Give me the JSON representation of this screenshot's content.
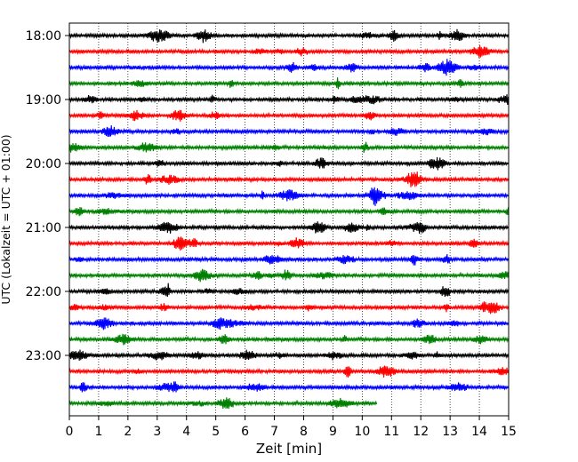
{
  "chart_data": {
    "type": "line",
    "title": "",
    "xlabel": "Zeit  [min]",
    "ylabel": "UTC (Lokalzeit = UTC + 01:00)",
    "xlim": [
      0,
      15
    ],
    "x_ticks": [
      0,
      1,
      2,
      3,
      4,
      5,
      6,
      7,
      8,
      9,
      10,
      11,
      12,
      13,
      14,
      15
    ],
    "x_tick_labels": [
      "0",
      "1",
      "2",
      "3",
      "4",
      "5",
      "6",
      "7",
      "8",
      "9",
      "10",
      "11",
      "12",
      "13",
      "14",
      "15"
    ],
    "y_tick_labels": [
      "18:00",
      "19:00",
      "20:00",
      "21:00",
      "22:00",
      "23:00"
    ],
    "grid": "vertical dotted",
    "trace_interval_min": 15,
    "color_cycle": [
      "#000000",
      "#ff0000",
      "#0000ff",
      "#008000"
    ],
    "traces": [
      {
        "start": "18:00",
        "end_min": 15
      },
      {
        "start": "18:15",
        "end_min": 15
      },
      {
        "start": "18:30",
        "end_min": 15
      },
      {
        "start": "18:45",
        "end_min": 15
      },
      {
        "start": "19:00",
        "end_min": 15
      },
      {
        "start": "19:15",
        "end_min": 15
      },
      {
        "start": "19:30",
        "end_min": 15
      },
      {
        "start": "19:45",
        "end_min": 15
      },
      {
        "start": "20:00",
        "end_min": 15
      },
      {
        "start": "20:15",
        "end_min": 15
      },
      {
        "start": "20:30",
        "end_min": 15
      },
      {
        "start": "20:45",
        "end_min": 15
      },
      {
        "start": "21:00",
        "end_min": 15
      },
      {
        "start": "21:15",
        "end_min": 15
      },
      {
        "start": "21:30",
        "end_min": 15
      },
      {
        "start": "21:45",
        "end_min": 15
      },
      {
        "start": "22:00",
        "end_min": 15
      },
      {
        "start": "22:15",
        "end_min": 15
      },
      {
        "start": "22:30",
        "end_min": 15
      },
      {
        "start": "22:45",
        "end_min": 15
      },
      {
        "start": "23:00",
        "end_min": 15
      },
      {
        "start": "23:15",
        "end_min": 15
      },
      {
        "start": "23:30",
        "end_min": 15
      },
      {
        "start": "23:45",
        "end_min": 10.5
      }
    ]
  }
}
